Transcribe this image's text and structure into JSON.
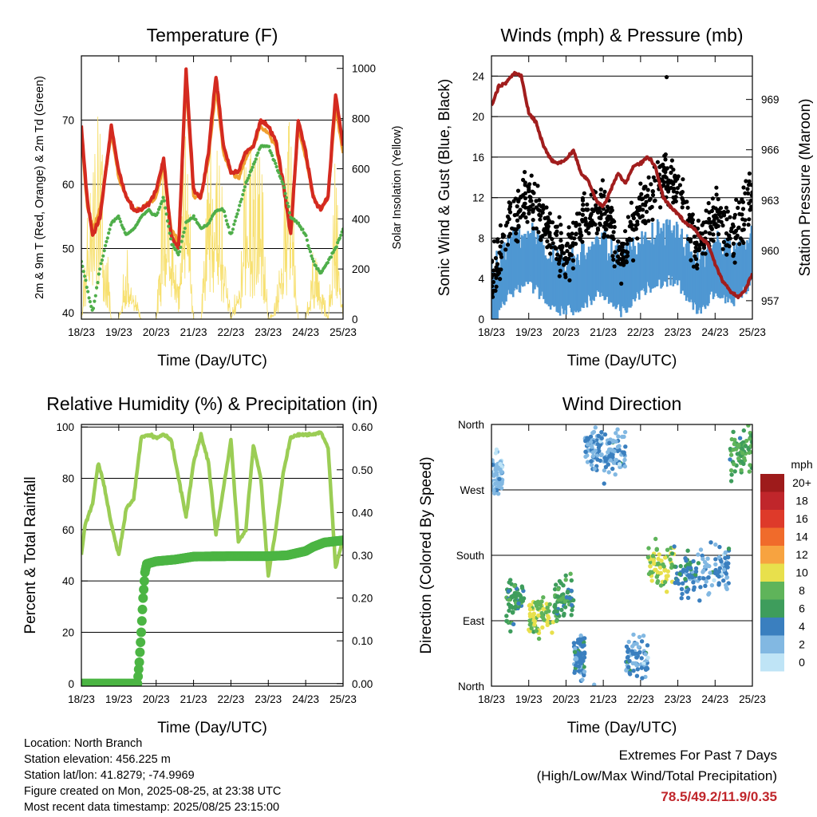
{
  "x_ticks": [
    "18/23",
    "19/23",
    "20/23",
    "21/23",
    "22/23",
    "23/23",
    "24/23",
    "25/23"
  ],
  "legend": {
    "unit_label": "mph",
    "labels": [
      "20+",
      "18",
      "16",
      "14",
      "12",
      "10",
      "8",
      "6",
      "4",
      "2",
      "0"
    ],
    "colors": [
      "#9e1b1b",
      "#c0262b",
      "#de3a2a",
      "#f06b2b",
      "#f7a340",
      "#e8e04c",
      "#5fb45a",
      "#3e9d5c",
      "#3a7fbf",
      "#82b8e2",
      "#bfe4f6"
    ]
  },
  "info": {
    "location": "Location: North Branch",
    "elevation": "Station elevation: 456.225 m",
    "latlon": "Station lat/lon: 41.8279; -74.9969",
    "created": "Figure created on Mon, 2025-08-25, at 23:38 UTC",
    "recent": "Most recent data timestamp: 2025/08/25 23:15:00"
  },
  "extremes": {
    "line1": "Extremes For Past 7 Days",
    "line2": "(High/Low/Max Wind/Total Precipitation)",
    "values": "78.5/49.2/11.9/0.35"
  },
  "chart_data": [
    {
      "type": "line",
      "title": "Temperature (F)",
      "xlabel": "Time (Day/UTC)",
      "ylabel": "2m & 9m T (Red, Orange) & 2m Td (Green)",
      "ylabel_right": "Solar Insolation (Yellow)",
      "ylim": [
        39,
        80
      ],
      "yticks": [
        40,
        50,
        60,
        70
      ],
      "ylim_right": [
        0,
        1050
      ],
      "yticks_right": [
        0,
        200,
        400,
        600,
        800,
        1000
      ],
      "x": [
        0,
        0.15,
        0.3,
        0.5,
        0.8,
        1.0,
        1.2,
        1.4,
        1.6,
        1.8,
        2.0,
        2.2,
        2.4,
        2.6,
        2.8,
        3.0,
        3.2,
        3.4,
        3.6,
        3.8,
        4.0,
        4.2,
        4.4,
        4.6,
        4.8,
        5.0,
        5.2,
        5.4,
        5.6,
        5.8,
        6.0,
        6.2,
        6.4,
        6.6,
        6.8,
        7.0
      ],
      "series": [
        {
          "name": "2m T",
          "color": "#d42a20",
          "values": [
            69,
            58,
            52,
            55,
            69,
            62,
            58,
            56,
            56,
            57,
            59,
            64,
            52,
            50,
            78,
            59,
            58,
            65,
            77,
            66,
            62,
            62,
            65,
            66,
            70,
            69,
            67,
            60,
            52,
            70,
            65,
            58,
            56,
            58,
            74,
            66
          ]
        },
        {
          "name": "9m T",
          "color": "#f0a030",
          "values": [
            68,
            57,
            53,
            56,
            68,
            61,
            58,
            56,
            56,
            57,
            58,
            63,
            53,
            51,
            76,
            58,
            58,
            64,
            75,
            65,
            62,
            61,
            64,
            66,
            69,
            68,
            66,
            60,
            53,
            69,
            64,
            58,
            56,
            58,
            72,
            65
          ]
        },
        {
          "name": "2m Td",
          "color": "#4fae4a",
          "values": [
            48,
            44,
            40,
            47,
            54,
            55,
            52,
            53,
            55,
            56,
            55,
            58,
            51,
            49,
            54,
            55,
            53,
            54,
            56,
            56,
            52,
            56,
            60,
            63,
            66,
            66,
            63,
            60,
            55,
            54,
            52,
            48,
            46,
            48,
            50,
            53
          ]
        },
        {
          "name": "Solar",
          "color": "#f7e070",
          "values": [
            0,
            450,
            600,
            900,
            0,
            0,
            300,
            150,
            0,
            0,
            0,
            700,
            500,
            200,
            950,
            0,
            0,
            800,
            800,
            500,
            0,
            200,
            800,
            650,
            750,
            0,
            80,
            600,
            850,
            0,
            0,
            300,
            200,
            0,
            700,
            0
          ]
        }
      ]
    },
    {
      "type": "scatter",
      "title": "Winds (mph) & Pressure (mb)",
      "xlabel": "Time (Day/UTC)",
      "ylabel": "Sonic Wind & Gust (Blue, Black)",
      "ylabel_right": "Station Pressure (Maroon)",
      "ylim": [
        0,
        26
      ],
      "yticks": [
        0,
        4,
        8,
        12,
        16,
        20,
        24
      ],
      "ylim_right": [
        955.9,
        971.6
      ],
      "yticks_right": [
        957,
        960,
        963,
        966,
        969
      ],
      "wind_daily_mean": [
        2,
        5,
        6,
        4,
        3,
        4,
        5,
        3,
        5,
        6,
        6,
        3,
        5,
        4,
        6
      ],
      "gust_daily_mean": [
        3,
        10,
        12,
        9,
        6,
        10,
        11,
        6,
        11,
        14,
        13,
        7,
        10,
        8,
        13
      ],
      "gust_max": 23.9,
      "pressure": {
        "x": [
          0,
          0.2,
          0.4,
          0.6,
          0.8,
          1.0,
          1.2,
          1.4,
          1.6,
          1.8,
          2.0,
          2.2,
          2.4,
          2.6,
          2.8,
          3.0,
          3.2,
          3.4,
          3.6,
          3.8,
          4.0,
          4.2,
          4.4,
          4.6,
          4.8,
          5.0,
          5.2,
          5.4,
          5.6,
          5.8,
          6.0,
          6.2,
          6.4,
          6.6,
          6.8,
          7.0
        ],
        "values": [
          968.6,
          969.8,
          970.0,
          970.6,
          970.4,
          968.2,
          967.6,
          966.2,
          965.4,
          965.2,
          965.4,
          966.0,
          964.6,
          964.2,
          963.0,
          962.6,
          963.6,
          964.6,
          964.0,
          965.0,
          965.2,
          965.6,
          965.0,
          963.2,
          962.6,
          962.2,
          961.6,
          961.4,
          960.8,
          960.4,
          959.2,
          958.2,
          957.6,
          957.2,
          957.6,
          958.6
        ]
      }
    },
    {
      "type": "line",
      "title": "Relative Humidity (%) & Precipitation (in)",
      "xlabel": "Time (Day/UTC)",
      "ylabel": "Percent & Total Rainfall",
      "ylim": [
        -1,
        101
      ],
      "yticks": [
        0,
        20,
        40,
        60,
        80,
        100
      ],
      "ylim_right": [
        -0.006,
        0.606
      ],
      "yticks_right": [
        0,
        0.1,
        0.2,
        0.3,
        0.4,
        0.5,
        0.6
      ],
      "yticklabels_right": [
        "0.00",
        "0.10",
        "0.20",
        "0.30",
        "0.40",
        "0.50",
        "0.60"
      ],
      "series": [
        {
          "name": "RH",
          "color": "#9bcd55",
          "axis": "left",
          "x": [
            0,
            0.1,
            0.3,
            0.45,
            0.6,
            0.8,
            1.0,
            1.2,
            1.4,
            1.6,
            1.8,
            2.0,
            2.2,
            2.4,
            2.6,
            2.8,
            3.0,
            3.2,
            3.4,
            3.6,
            3.8,
            4.0,
            4.2,
            4.4,
            4.6,
            4.8,
            5.0,
            5.2,
            5.4,
            5.6,
            5.8,
            6.0,
            6.2,
            6.4,
            6.6,
            6.8,
            7.0
          ],
          "values": [
            50,
            62,
            70,
            86,
            78,
            62,
            50,
            68,
            72,
            96,
            97,
            96,
            97,
            95,
            80,
            65,
            86,
            97,
            86,
            58,
            76,
            95,
            55,
            60,
            93,
            80,
            42,
            60,
            82,
            96,
            97,
            97,
            97,
            98,
            92,
            45,
            57
          ]
        },
        {
          "name": "Total Precipitation",
          "color": "#4bb543",
          "axis": "right",
          "x": [
            0,
            1.5,
            1.55,
            1.6,
            1.65,
            1.7,
            1.75,
            2.0,
            2.5,
            3.0,
            4.0,
            5.0,
            5.5,
            6.0,
            6.2,
            6.5,
            7.0
          ],
          "values": [
            0,
            0,
            0.05,
            0.12,
            0.2,
            0.26,
            0.28,
            0.286,
            0.29,
            0.297,
            0.298,
            0.298,
            0.3,
            0.31,
            0.32,
            0.33,
            0.335
          ]
        }
      ]
    },
    {
      "type": "scatter",
      "title": "Wind Direction",
      "xlabel": "Time (Day/UTC)",
      "ylabel": "Direction (Colored By Speed)",
      "ylim": [
        0,
        360
      ],
      "yticks": [
        0,
        90,
        180,
        270,
        360
      ],
      "yticklabels": [
        "North",
        "East",
        "South",
        "West",
        "North"
      ],
      "direction_segments": [
        {
          "from": 0.0,
          "to": 0.3,
          "direction": 290,
          "speed": 2
        },
        {
          "from": 0.4,
          "to": 0.9,
          "direction": 115,
          "speed": 6
        },
        {
          "from": 1.0,
          "to": 1.7,
          "direction": 100,
          "speed": 9
        },
        {
          "from": 1.7,
          "to": 2.2,
          "direction": 120,
          "speed": 6
        },
        {
          "from": 2.2,
          "to": 2.5,
          "direction": 40,
          "speed": 4
        },
        {
          "from": 2.5,
          "to": 3.0,
          "direction": 330,
          "speed": 3
        },
        {
          "from": 3.0,
          "to": 3.6,
          "direction": 320,
          "speed": 3
        },
        {
          "from": 3.6,
          "to": 4.2,
          "direction": 40,
          "speed": 3
        },
        {
          "from": 4.2,
          "to": 4.9,
          "direction": 165,
          "speed": 9
        },
        {
          "from": 4.9,
          "to": 5.6,
          "direction": 155,
          "speed": 4
        },
        {
          "from": 5.6,
          "to": 6.4,
          "direction": 160,
          "speed": 3
        },
        {
          "from": 6.4,
          "to": 7.0,
          "direction": 320,
          "speed": 7
        }
      ]
    }
  ]
}
